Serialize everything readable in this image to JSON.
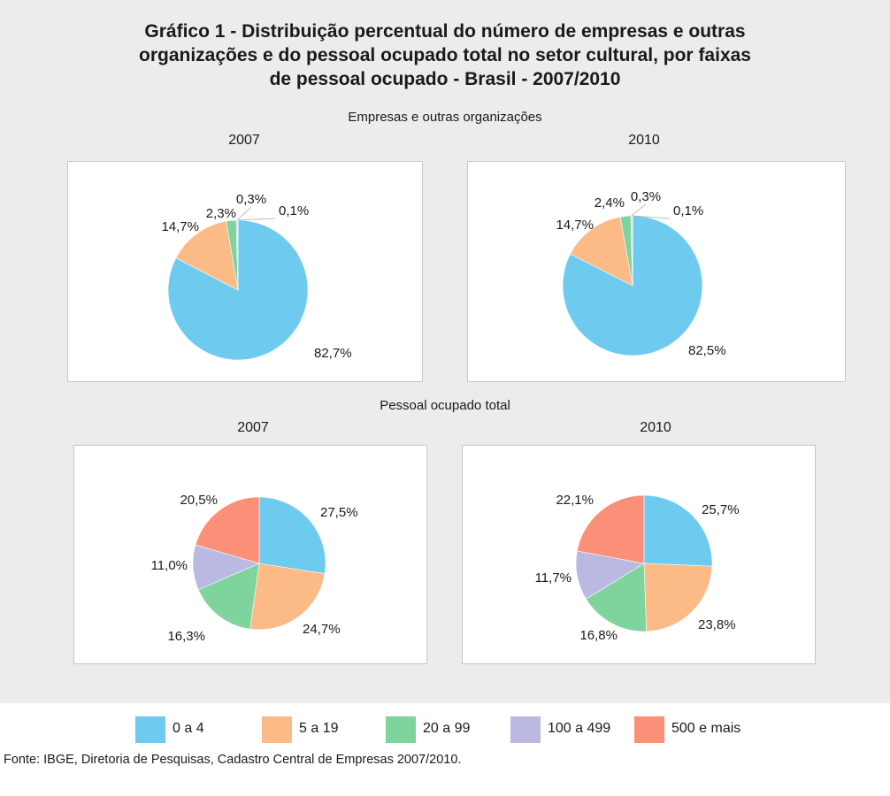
{
  "title_lines": [
    "Gráfico 1 - Distribuição percentual do número de empresas e outras",
    "organizações e do pessoal ocupado total no setor cultural, por faixas",
    "de pessoal ocupado - Brasil - 2007/2010"
  ],
  "sections": [
    {
      "title": "Empresas e outras organizações"
    },
    {
      "title": "Pessoal ocupado total"
    }
  ],
  "legend": [
    {
      "label": "0 a 4",
      "color": "#6ecbef"
    },
    {
      "label": "5 a 19",
      "color": "#fcba86"
    },
    {
      "label": "20 a 99",
      "color": "#7fd39c"
    },
    {
      "label": "100 a 499",
      "color": "#b9b9e1"
    },
    {
      "label": "500 e mais",
      "color": "#fb8f77"
    }
  ],
  "source": "Fonte: IBGE, Diretoria de Pesquisas, Cadastro Central de Empresas 2007/2010.",
  "chart_data": [
    {
      "type": "pie",
      "section": "Empresas e outras organizações",
      "year": "2007",
      "categories": [
        "0 a 4",
        "5 a 19",
        "20 a 99",
        "100 a 499",
        "500 e mais"
      ],
      "values": [
        82.7,
        14.7,
        2.3,
        0.3,
        0.1
      ],
      "labels": [
        "82,7%",
        "14,7%",
        "2,3%",
        "0,3%",
        "0,1%"
      ]
    },
    {
      "type": "pie",
      "section": "Empresas e outras organizações",
      "year": "2010",
      "categories": [
        "0 a 4",
        "5 a 19",
        "20 a 99",
        "100 a 499",
        "500 e mais"
      ],
      "values": [
        82.5,
        14.7,
        2.4,
        0.3,
        0.1
      ],
      "labels": [
        "82,5%",
        "14,7%",
        "2,4%",
        "0,3%",
        "0,1%"
      ]
    },
    {
      "type": "pie",
      "section": "Pessoal ocupado total",
      "year": "2007",
      "categories": [
        "0 a 4",
        "5 a 19",
        "20 a 99",
        "100 a 499",
        "500 e mais"
      ],
      "values": [
        27.5,
        24.7,
        16.3,
        11.0,
        20.5
      ],
      "labels": [
        "27,5%",
        "24,7%",
        "16,3%",
        "11,0%",
        "20,5%"
      ]
    },
    {
      "type": "pie",
      "section": "Pessoal ocupado total",
      "year": "2010",
      "categories": [
        "0 a 4",
        "5 a 19",
        "20 a 99",
        "100 a 499",
        "500 e mais"
      ],
      "values": [
        25.7,
        23.8,
        16.8,
        11.7,
        22.1
      ],
      "labels": [
        "25,7%",
        "23,8%",
        "16,8%",
        "11,7%",
        "22,1%"
      ]
    }
  ]
}
